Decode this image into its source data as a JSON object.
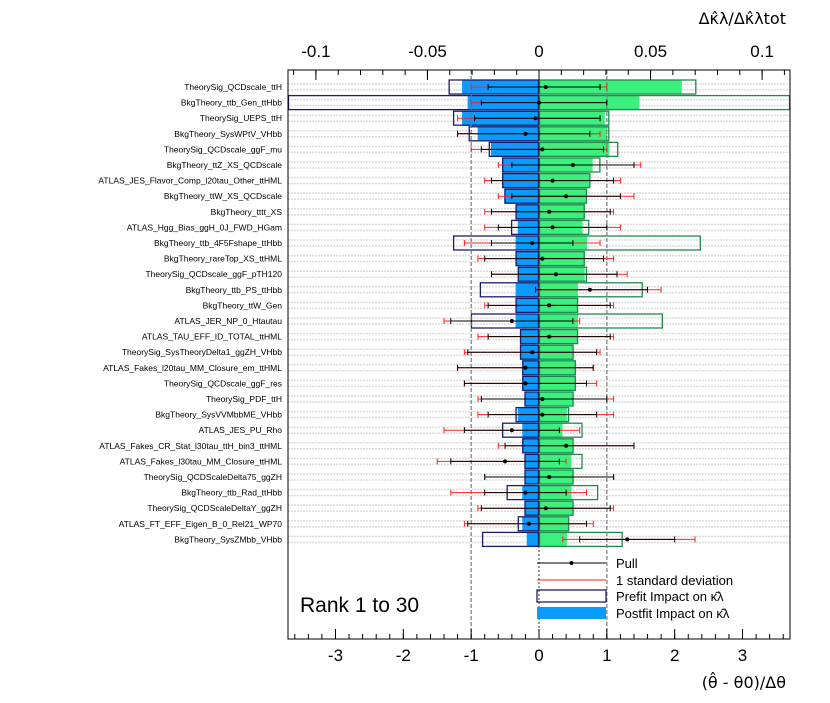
{
  "chart_data": {
    "type": "ranking",
    "top_axis": {
      "label": "Δκ̂λ/Δκ̂λtot",
      "range": [
        -0.1125,
        0.1125
      ],
      "ticks": [
        "-0.1",
        "-0.05",
        "0",
        "0.05",
        "0.1"
      ],
      "tick_values": [
        -0.1,
        -0.05,
        0,
        0.05,
        0.1
      ]
    },
    "bottom_axis": {
      "label": "(θ̂ - θ0)/Δθ",
      "range": [
        -3.7,
        3.7
      ],
      "ticks": [
        "-3",
        "-2",
        "-1",
        "0",
        "1",
        "2",
        "3"
      ],
      "tick_values": [
        -3,
        -2,
        -1,
        0,
        1,
        2,
        3
      ]
    },
    "rank_label": "Rank 1 to 30",
    "legend": [
      {
        "key": "pull",
        "label": "Pull"
      },
      {
        "key": "sigma",
        "label": "1 standard deviation"
      },
      {
        "key": "prefit",
        "label": "Prefit Impact on κ̂λ"
      },
      {
        "key": "postfit",
        "label": "Postfit Impact on κ̂λ"
      }
    ],
    "colors": {
      "postfit_up": "#3bf07c",
      "postfit_down": "#0a9bff",
      "prefit_up": "#1f8a4c",
      "prefit_down": "#1c1c6b",
      "pull": "#000000",
      "sigma": "#ff2020",
      "stripe": "#dcdcdc"
    },
    "parameters": [
      {
        "name": "TheorySig_QCDscale_ttH",
        "pull": 0.1,
        "err_lo": 0.85,
        "err_hi": 0.8,
        "sig_lo": -1.0,
        "sig_hi": 1.0,
        "post_up": 0.064,
        "post_down": -0.0345,
        "pre_up": 0.0705,
        "pre_down": -0.0405
      },
      {
        "name": "BkgTheory_ttb_Gen_ttHbb",
        "pull": 0.0,
        "err_lo": 0.85,
        "err_hi": 1.0,
        "sig_lo": -1.0,
        "sig_hi": 1.0,
        "post_up": 0.045,
        "post_down": -0.032,
        "pre_up": 0.1125,
        "pre_down": -0.1125
      },
      {
        "name": "TheorySig_UEPS_ttH",
        "pull": -0.05,
        "err_lo": 0.9,
        "err_hi": 0.95,
        "sig_lo": -1.2,
        "sig_hi": 0.9,
        "post_up": 0.0295,
        "post_down": -0.0345,
        "pre_up": 0.0315,
        "pre_down": -0.0385
      },
      {
        "name": "BkgTheory_SysWPtV_VHbb",
        "pull": -0.2,
        "err_lo": 1.0,
        "err_hi": 0.95,
        "sig_lo": -1.2,
        "sig_hi": 0.9,
        "post_up": 0.0305,
        "post_down": -0.0275,
        "pre_up": 0.0315,
        "pre_down": -0.0315
      },
      {
        "name": "TheorySig_QCDscale_ggF_mu",
        "pull": 0.05,
        "err_lo": 0.9,
        "err_hi": 0.9,
        "sig_lo": -1.0,
        "sig_hi": 1.0,
        "post_up": 0.0315,
        "post_down": -0.0215,
        "pre_up": 0.0355,
        "pre_down": -0.0225
      },
      {
        "name": "BkgTheory_ttZ_XS_QCDscale",
        "pull": 0.5,
        "err_lo": 0.9,
        "err_hi": 0.9,
        "sig_lo": -0.6,
        "sig_hi": 1.5,
        "post_up": 0.024,
        "post_down": -0.0165,
        "pre_up": 0.0275,
        "pre_down": -0.0165
      },
      {
        "name": "ATLAS_JES_Flavor_Comp_l20tau_Other_ttHML",
        "pull": 0.2,
        "err_lo": 0.9,
        "err_hi": 0.9,
        "sig_lo": -0.8,
        "sig_hi": 1.2,
        "post_up": 0.023,
        "post_down": -0.0165,
        "pre_up": 0.023,
        "pre_down": -0.0165
      },
      {
        "name": "BkgTheory_ttW_XS_QCDscale",
        "pull": 0.4,
        "err_lo": 0.8,
        "err_hi": 0.8,
        "sig_lo": -0.6,
        "sig_hi": 1.4,
        "post_up": 0.0215,
        "post_down": -0.0155,
        "pre_up": 0.0215,
        "pre_down": -0.0155
      },
      {
        "name": "BkgTheory_tttt_XS",
        "pull": 0.15,
        "err_lo": 0.85,
        "err_hi": 0.9,
        "sig_lo": -0.8,
        "sig_hi": 1.1,
        "post_up": 0.0205,
        "post_down": -0.0105,
        "pre_up": 0.0205,
        "pre_down": -0.0105
      },
      {
        "name": "ATLAS_Hgg_Bias_ggH_0J_FWD_HGam",
        "pull": 0.2,
        "err_lo": 0.8,
        "err_hi": 0.8,
        "sig_lo": -0.8,
        "sig_hi": 1.2,
        "post_up": 0.0195,
        "post_down": -0.0095,
        "pre_up": 0.0225,
        "pre_down": -0.0125
      },
      {
        "name": "BkgTheory_ttb_4F5Fshape_ttHbb",
        "pull": -0.1,
        "err_lo": 0.6,
        "err_hi": 0.6,
        "sig_lo": -1.1,
        "sig_hi": 0.9,
        "post_up": 0.0215,
        "post_down": -0.0105,
        "pre_up": 0.0725,
        "pre_down": -0.0385
      },
      {
        "name": "BkgTheory_rareTop_XS_ttHML",
        "pull": 0.05,
        "err_lo": 0.85,
        "err_hi": 0.9,
        "sig_lo": -0.9,
        "sig_hi": 1.1,
        "post_up": 0.0205,
        "post_down": -0.0105,
        "pre_up": 0.0205,
        "pre_down": -0.0105
      },
      {
        "name": "TheorySig_QCDscale_ggF_pTH120",
        "pull": 0.25,
        "err_lo": 0.95,
        "err_hi": 0.9,
        "sig_lo": -0.7,
        "sig_hi": 1.3,
        "post_up": 0.0205,
        "post_down": -0.0095,
        "pre_up": 0.0215,
        "pre_down": -0.0095
      },
      {
        "name": "BkgTheory_ttb_PS_ttHbb",
        "pull": 0.75,
        "err_lo": 0.8,
        "err_hi": 0.85,
        "sig_lo": 0.0,
        "sig_hi": 1.8,
        "post_up": 0.0175,
        "post_down": -0.0105,
        "pre_up": 0.0465,
        "pre_down": -0.0265
      },
      {
        "name": "BkgTheory_ttW_Gen",
        "pull": 0.15,
        "err_lo": 0.9,
        "err_hi": 0.9,
        "sig_lo": -0.8,
        "sig_hi": 1.1,
        "post_up": 0.0175,
        "post_down": -0.0105,
        "pre_up": 0.0175,
        "pre_down": -0.0105
      },
      {
        "name": "ATLAS_JER_NP_0_Htautau",
        "pull": -0.4,
        "err_lo": 0.9,
        "err_hi": 0.9,
        "sig_lo": -1.4,
        "sig_hi": 0.6,
        "post_up": 0.0175,
        "post_down": -0.0105,
        "pre_up": 0.0555,
        "pre_down": -0.0305
      },
      {
        "name": "ATLAS_TAU_EFF_ID_TOTAL_ttHML",
        "pull": 0.15,
        "err_lo": 0.9,
        "err_hi": 0.9,
        "sig_lo": -0.9,
        "sig_hi": 1.1,
        "post_up": 0.0175,
        "post_down": -0.0085,
        "pre_up": 0.0175,
        "pre_down": -0.0085
      },
      {
        "name": "TheorySig_SysTheoryDelta1_ggZH_VHbb",
        "pull": -0.1,
        "err_lo": 0.95,
        "err_hi": 0.95,
        "sig_lo": -1.1,
        "sig_hi": 0.9,
        "post_up": 0.0155,
        "post_down": -0.0085,
        "pre_up": 0.0155,
        "pre_down": -0.0085
      },
      {
        "name": "ATLAS_Fakes_l20tau_MM_Closure_em_ttHML",
        "pull": -0.2,
        "err_lo": 1.0,
        "err_hi": 1.0,
        "sig_lo": -1.2,
        "sig_hi": 0.8,
        "post_up": 0.0165,
        "post_down": -0.0075,
        "pre_up": 0.0165,
        "pre_down": -0.0075
      },
      {
        "name": "TheorySig_QCDscale_ggF_res",
        "pull": -0.2,
        "err_lo": 0.9,
        "err_hi": 0.9,
        "sig_lo": -1.1,
        "sig_hi": 0.85,
        "post_up": 0.0165,
        "post_down": -0.0075,
        "pre_up": 0.0165,
        "pre_down": -0.0075
      },
      {
        "name": "TheorySig_PDF_ttH",
        "pull": 0.05,
        "err_lo": 0.9,
        "err_hi": 0.95,
        "sig_lo": -0.9,
        "sig_hi": 1.1,
        "post_up": 0.0155,
        "post_down": -0.0065,
        "pre_up": 0.0155,
        "pre_down": -0.0065
      },
      {
        "name": "BkgTheory_SysVVMbbME_VHbb",
        "pull": 0.05,
        "err_lo": 0.8,
        "err_hi": 0.8,
        "sig_lo": -0.9,
        "sig_hi": 1.1,
        "post_up": 0.0125,
        "post_down": -0.0095,
        "pre_up": 0.0135,
        "pre_down": -0.0105
      },
      {
        "name": "ATLAS_JES_PU_Rho",
        "pull": -0.4,
        "err_lo": 0.7,
        "err_hi": 0.7,
        "sig_lo": -1.4,
        "sig_hi": 0.6,
        "post_up": 0.0105,
        "post_down": -0.0075,
        "pre_up": 0.0195,
        "pre_down": -0.0165
      },
      {
        "name": "ATLAS_Fakes_CR_Stat_l30tau_ttH_bin3_ttHML",
        "pull": 0.4,
        "err_lo": 0.9,
        "err_hi": 1.0,
        "sig_lo": -0.6,
        "sig_hi": 1.4,
        "post_up": 0.0155,
        "post_down": -0.0075,
        "pre_up": 0.0155,
        "pre_down": -0.0075
      },
      {
        "name": "ATLAS_Fakes_l30tau_MM_Closure_ttHML",
        "pull": -0.5,
        "err_lo": 0.8,
        "err_hi": 0.8,
        "sig_lo": -1.5,
        "sig_hi": 0.4,
        "post_up": 0.0145,
        "post_down": -0.0065,
        "pre_up": 0.0195,
        "pre_down": -0.0065
      },
      {
        "name": "TheorySig_QCDScaleDelta75_ggZH",
        "pull": 0.15,
        "err_lo": 0.95,
        "err_hi": 0.95,
        "sig_lo": -0.8,
        "sig_hi": 1.1,
        "post_up": 0.0155,
        "post_down": -0.0065,
        "pre_up": 0.0155,
        "pre_down": -0.0065
      },
      {
        "name": "BkgTheory_ttb_Rad_ttHbb",
        "pull": -0.2,
        "err_lo": 0.6,
        "err_hi": 0.6,
        "sig_lo": -1.3,
        "sig_hi": 0.7,
        "post_up": 0.0145,
        "post_down": -0.0075,
        "pre_up": 0.0265,
        "pre_down": -0.0145
      },
      {
        "name": "TheorySig_QCDScaleDeltaY_ggZH",
        "pull": 0.1,
        "err_lo": 0.95,
        "err_hi": 0.95,
        "sig_lo": -0.9,
        "sig_hi": 1.1,
        "post_up": 0.0155,
        "post_down": -0.0065,
        "pre_up": 0.0155,
        "pre_down": -0.0065
      },
      {
        "name": "ATLAS_FT_EFF_Eigen_B_0_Rel21_WP70",
        "pull": -0.15,
        "err_lo": 0.9,
        "err_hi": 0.85,
        "sig_lo": -1.1,
        "sig_hi": 0.8,
        "post_up": 0.0135,
        "post_down": -0.0075,
        "pre_up": 0.0135,
        "pre_down": -0.0095
      },
      {
        "name": "BkgTheory_SysZMbb_VHbb",
        "pull": 1.3,
        "err_lo": 0.7,
        "err_hi": 0.7,
        "sig_lo": 0.35,
        "sig_hi": 2.3,
        "post_up": 0.0125,
        "post_down": -0.0055,
        "pre_up": 0.0375,
        "pre_down": -0.0255
      }
    ]
  }
}
